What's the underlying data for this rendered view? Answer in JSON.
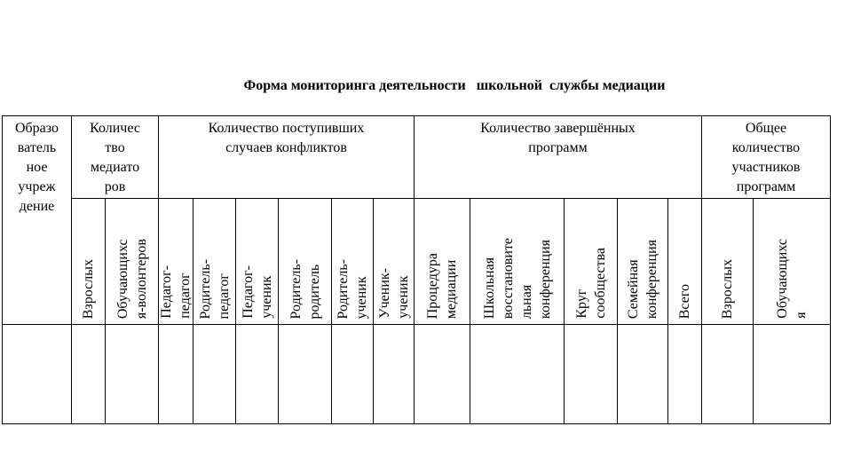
{
  "title": "Форма мониторинга деятельности   школьной  службы медиации",
  "headers": {
    "institution": "Образо\nватель\nное\nучреж\nдение",
    "mediators": "Количес\nтво\nмедиато\nров",
    "cases": "Количество поступивших\nслучаев конфликтов",
    "completed": "Количество завершённых\nпрограмм",
    "participants": "Общее\nколичество\nучастников\nпрограмм"
  },
  "subheaders": [
    "Взрослых",
    "Обучающихс\nя-волонтеров",
    "Педагог-\nпедагог",
    "Родитель-\nпедагог",
    "Педагог-\nученик",
    "Родитель-\nродитель",
    "Родитель-\nученик",
    "Ученик-\nученик",
    "Процедура\nмедиации",
    "Школьная\nвосстановите\nльная\nконференция",
    "Круг\nсообщества",
    "Семейная\nконференция",
    "Всего",
    "Взрослых",
    "Обучающихс\nя"
  ],
  "body_rows": [
    [
      "",
      "",
      "",
      "",
      "",
      "",
      "",
      "",
      "",
      "",
      "",
      "",
      "",
      "",
      "",
      ""
    ]
  ]
}
